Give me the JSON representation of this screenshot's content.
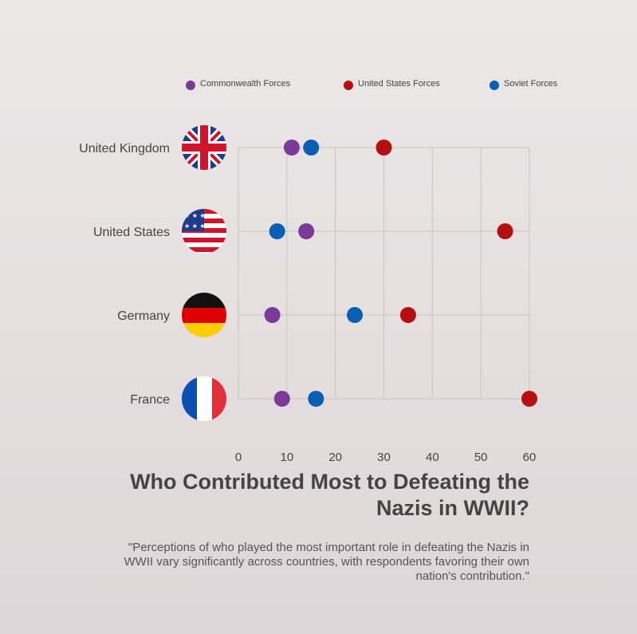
{
  "chart_data": {
    "type": "scatter",
    "title": "Who Contributed Most to Defeating the Nazis in WWII?",
    "subtitle": "\"Perceptions of who played the most important role in defeating the Nazis in WWII vary significantly across countries, with respondents favoring their own nation's contribution.\"",
    "categories": [
      "United Kingdom",
      "United States",
      "Germany",
      "France"
    ],
    "xlim": [
      0,
      60
    ],
    "x_ticks": [
      0,
      10,
      20,
      30,
      40,
      50,
      60
    ],
    "grid": true,
    "legend_position": "top",
    "series": [
      {
        "name": "Commonwealth Forces",
        "color": "#7b3a98",
        "values": [
          11,
          14,
          7,
          9
        ]
      },
      {
        "name": "United States Forces",
        "color": "#b70f0f",
        "values": [
          30,
          55,
          35,
          60
        ]
      },
      {
        "name": "Soviet Forces",
        "color": "#0a5fb4",
        "values": [
          15,
          8,
          24,
          16
        ]
      }
    ],
    "flag_icons": [
      "uk-flag-icon",
      "us-flag-icon",
      "germany-flag-icon",
      "france-flag-icon"
    ]
  }
}
